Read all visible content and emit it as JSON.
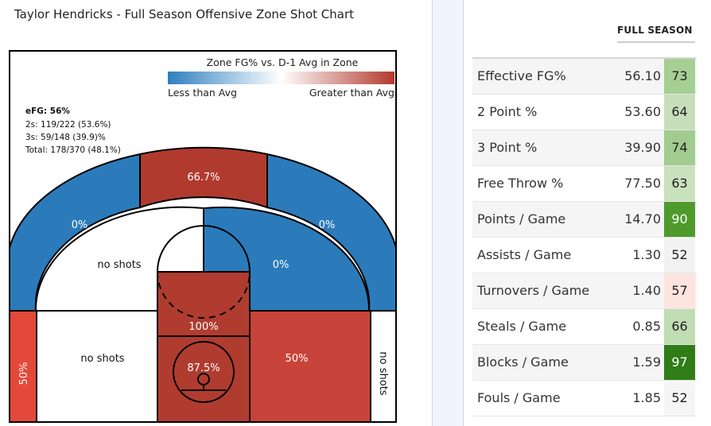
{
  "chart": {
    "title": "Taylor Hendricks - Full Season Offensive Zone Shot Chart",
    "legend": {
      "title": "Zone FG% vs. D-1 Avg in Zone",
      "low_label": "Less than Avg",
      "high_label": "Greater than Avg",
      "colors": [
        "#2f7fc0",
        "#ffffff",
        "#b23a2e"
      ]
    },
    "summary": {
      "efg": "eFG: 56%",
      "twos": "2s: 119/222 (53.6%)",
      "threes": "3s: 59/148 (39.9)%",
      "total": "Total: 178/370 (48.1%)"
    },
    "zones": {
      "left_wing_three": {
        "label": "0%",
        "color": "#2b7bbb"
      },
      "top_three": {
        "label": "66.7%",
        "color": "#b13a2f"
      },
      "right_wing_three": {
        "label": "0%",
        "color": "#2b7bbb"
      },
      "left_midrange": {
        "label": "no shots",
        "color": "#ffffff"
      },
      "right_midrange": {
        "label": "0%",
        "color": "#2b7bbb"
      },
      "paint_top": {
        "label": "100%",
        "color": "#b03c30"
      },
      "left_corner_three": {
        "label": "50%",
        "color": "#e4483a"
      },
      "left_baseline_mid": {
        "label": "no shots",
        "color": "#ffffff"
      },
      "rim": {
        "label": "87.5%",
        "color": "#b03c30"
      },
      "right_baseline_mid": {
        "label": "50%",
        "color": "#c8433a"
      },
      "right_corner_three": {
        "label": "no shots",
        "color": "#ffffff"
      }
    }
  },
  "stats_table": {
    "column_header": "FULL SEASON",
    "rows": [
      {
        "label": "Effective FG%",
        "value": "56.10",
        "pct": "73",
        "pct_bg": "#a6cf94",
        "pct_fg": "#222222"
      },
      {
        "label": "2 Point %",
        "value": "53.60",
        "pct": "64",
        "pct_bg": "#c6dfba",
        "pct_fg": "#222222"
      },
      {
        "label": "3 Point %",
        "value": "39.90",
        "pct": "74",
        "pct_bg": "#a2cc8f",
        "pct_fg": "#222222"
      },
      {
        "label": "Free Throw %",
        "value": "77.50",
        "pct": "63",
        "pct_bg": "#c9e1bd",
        "pct_fg": "#222222"
      },
      {
        "label": "Points / Game",
        "value": "14.70",
        "pct": "90",
        "pct_bg": "#4e9a2b",
        "pct_fg": "#ffffff"
      },
      {
        "label": "Assists / Game",
        "value": "1.30",
        "pct": "52",
        "pct_bg": "#f2f2f2",
        "pct_fg": "#222222"
      },
      {
        "label": "Turnovers / Game",
        "value": "1.40",
        "pct": "57",
        "pct_bg": "#fde4df",
        "pct_fg": "#222222"
      },
      {
        "label": "Steals / Game",
        "value": "0.85",
        "pct": "66",
        "pct_bg": "#c0dcb3",
        "pct_fg": "#222222"
      },
      {
        "label": "Blocks / Game",
        "value": "1.59",
        "pct": "97",
        "pct_bg": "#2e7d16",
        "pct_fg": "#ffffff"
      },
      {
        "label": "Fouls / Game",
        "value": "1.85",
        "pct": "52",
        "pct_bg": "#f5f5f5",
        "pct_fg": "#222222"
      }
    ]
  }
}
